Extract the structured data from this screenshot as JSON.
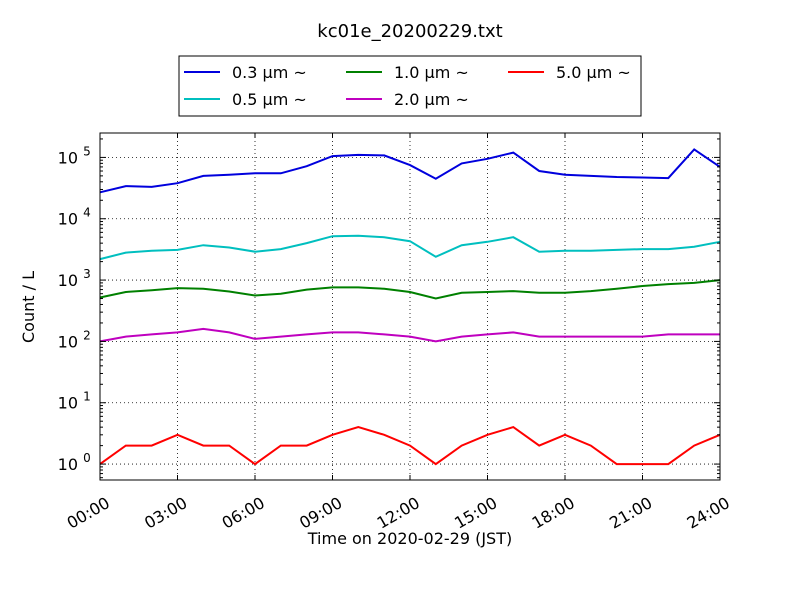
{
  "chart_data": {
    "type": "line",
    "title": "kc01e_20200229.txt",
    "xlabel": "Time on 2020-02-29 (JST)",
    "ylabel": "Count / L",
    "yscale": "log",
    "xlim": [
      "00:00",
      "24:00"
    ],
    "ylim": [
      0.55,
      250000
    ],
    "grid": true,
    "legend_position": "top-center",
    "x_ticks": [
      "00:00",
      "03:00",
      "06:00",
      "09:00",
      "12:00",
      "15:00",
      "18:00",
      "21:00",
      "24:00"
    ],
    "y_ticks": [
      {
        "value": 1,
        "label": "10",
        "exp": "0"
      },
      {
        "value": 10,
        "label": "10",
        "exp": "1"
      },
      {
        "value": 100,
        "label": "10",
        "exp": "2"
      },
      {
        "value": 1000,
        "label": "10",
        "exp": "3"
      },
      {
        "value": 10000,
        "label": "10",
        "exp": "4"
      },
      {
        "value": 100000,
        "label": "10",
        "exp": "5"
      }
    ],
    "x": [
      "00:00",
      "01:00",
      "02:00",
      "03:00",
      "04:00",
      "05:00",
      "06:00",
      "07:00",
      "08:00",
      "09:00",
      "10:00",
      "11:00",
      "12:00",
      "13:00",
      "14:00",
      "15:00",
      "16:00",
      "17:00",
      "18:00",
      "19:00",
      "20:00",
      "21:00",
      "22:00",
      "23:00",
      "24:00"
    ],
    "series": [
      {
        "name": "0.3 µm ~",
        "color": "#0000dd",
        "values": [
          27000,
          34000,
          33000,
          38000,
          50000,
          52000,
          55000,
          55000,
          72000,
          105000,
          110000,
          108000,
          75000,
          45000,
          80000,
          95000,
          120000,
          60000,
          52000,
          50000,
          48000,
          47000,
          46000,
          135000,
          70000
        ]
      },
      {
        "name": "0.5 µm ~",
        "color": "#00bfbf",
        "values": [
          2200,
          2800,
          3000,
          3100,
          3700,
          3400,
          2900,
          3200,
          4000,
          5200,
          5300,
          5000,
          4300,
          2400,
          3700,
          4200,
          5000,
          2900,
          3000,
          3000,
          3100,
          3200,
          3200,
          3500,
          4200
        ]
      },
      {
        "name": "1.0 µm ~",
        "color": "#008000",
        "values": [
          520,
          640,
          680,
          740,
          720,
          650,
          560,
          600,
          700,
          760,
          760,
          720,
          640,
          500,
          620,
          640,
          660,
          620,
          620,
          660,
          720,
          800,
          860,
          900,
          1000
        ]
      },
      {
        "name": "2.0 µm ~",
        "color": "#bf00bf",
        "values": [
          100,
          120,
          130,
          140,
          160,
          140,
          110,
          120,
          130,
          140,
          140,
          130,
          120,
          100,
          120,
          130,
          140,
          120,
          120,
          120,
          120,
          120,
          130,
          130,
          130
        ]
      },
      {
        "name": "5.0 µm ~",
        "color": "#ff0000",
        "values": [
          1,
          2,
          2,
          3,
          2,
          2,
          1,
          2,
          2,
          3,
          4,
          3,
          2,
          1,
          2,
          3,
          4,
          2,
          3,
          2,
          1,
          1,
          1,
          2,
          3
        ]
      }
    ]
  }
}
